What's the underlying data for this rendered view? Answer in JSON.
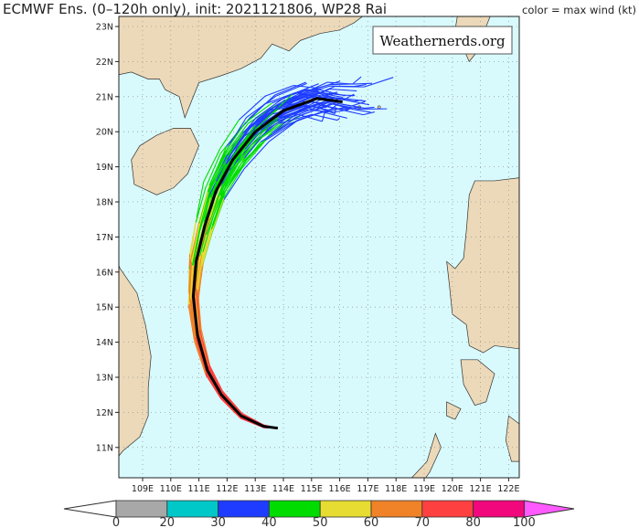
{
  "header": {
    "title": "ECMWF Ens. (0–120h only), init: 2021121806, WP28 Rai",
    "color_note": "color = max wind (kt)"
  },
  "watermark": "Weathernerds.org",
  "map": {
    "lon_range": [
      108.2,
      122.4
    ],
    "lat_range": [
      10.2,
      23.3
    ],
    "lon_labels": [
      "109E",
      "110E",
      "111E",
      "112E",
      "113E",
      "114E",
      "115E",
      "116E",
      "117E",
      "118E",
      "119E",
      "120E",
      "121E",
      "122E"
    ],
    "lat_labels": [
      "23N",
      "22N",
      "21N",
      "20N",
      "19N",
      "18N",
      "17N",
      "16N",
      "15N",
      "14N",
      "13N",
      "12N",
      "11N"
    ],
    "colors": {
      "ocean": "#d8fafd",
      "land": "#ecd9b9",
      "mean_track": "#000000"
    },
    "ensemble_mean_track": [
      [
        113.8,
        11.55
      ],
      [
        113.3,
        11.6
      ],
      [
        112.5,
        11.9
      ],
      [
        111.8,
        12.5
      ],
      [
        111.3,
        13.2
      ],
      [
        110.95,
        14.2
      ],
      [
        110.8,
        15.3
      ],
      [
        110.9,
        16.3
      ],
      [
        111.2,
        17.3
      ],
      [
        111.6,
        18.3
      ],
      [
        112.2,
        19.2
      ],
      [
        113.0,
        20.0
      ],
      [
        114.0,
        20.6
      ],
      [
        115.2,
        20.95
      ],
      [
        116.1,
        20.85
      ]
    ]
  },
  "colorbar": {
    "labels": [
      "0",
      "20",
      "30",
      "40",
      "50",
      "60",
      "70",
      "80",
      "100"
    ],
    "colors": [
      "#ffffff",
      "#a8a8a8",
      "#00c8c8",
      "#1e3cff",
      "#00dc00",
      "#e6dc32",
      "#f08228",
      "#ff4040",
      "#f0087c",
      "#ff5aff"
    ]
  }
}
